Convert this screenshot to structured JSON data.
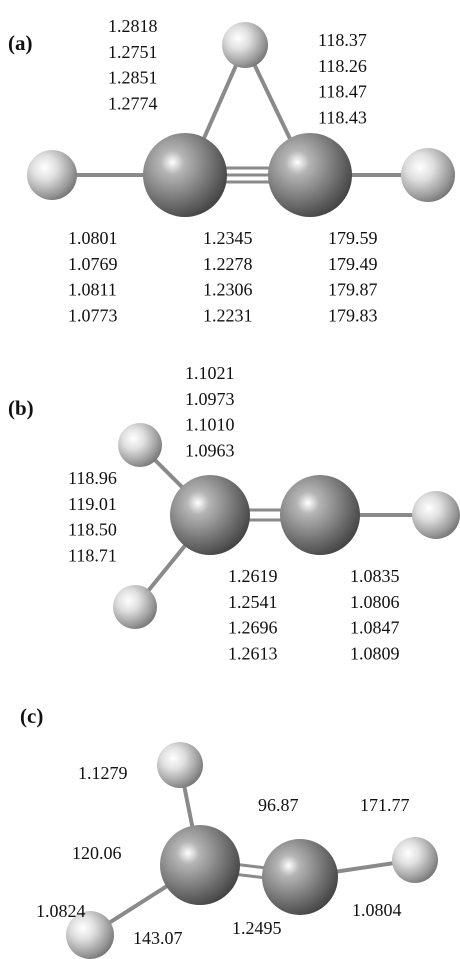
{
  "panels": [
    {
      "label": "(a)",
      "groups": [
        [
          "1.2818",
          "1.2751",
          "1.2851",
          "1.2774"
        ],
        [
          "118.37",
          "118.26",
          "118.47",
          "118.43"
        ],
        [
          "1.0801",
          "1.0769",
          "1.0811",
          "1.0773"
        ],
        [
          "1.2345",
          "1.2278",
          "1.2306",
          "1.2231"
        ],
        [
          "179.59",
          "179.49",
          "179.87",
          "179.83"
        ]
      ]
    },
    {
      "label": "(b)",
      "groups": [
        [
          "1.1021",
          "1.0973",
          "1.1010",
          "1.0963"
        ],
        [
          "118.96",
          "119.01",
          "118.50",
          "118.71"
        ],
        [
          "1.2619",
          "1.2541",
          "1.2696",
          "1.2613"
        ],
        [
          "1.0835",
          "1.0806",
          "1.0847",
          "1.0809"
        ]
      ]
    },
    {
      "label": "(c)",
      "groups": [
        [
          "1.1279"
        ],
        [
          "96.87"
        ],
        [
          "171.77"
        ],
        [
          "120.06"
        ],
        [
          "1.0824"
        ],
        [
          "1.0804"
        ],
        [
          "1.2495"
        ],
        [
          "143.07"
        ]
      ]
    }
  ]
}
